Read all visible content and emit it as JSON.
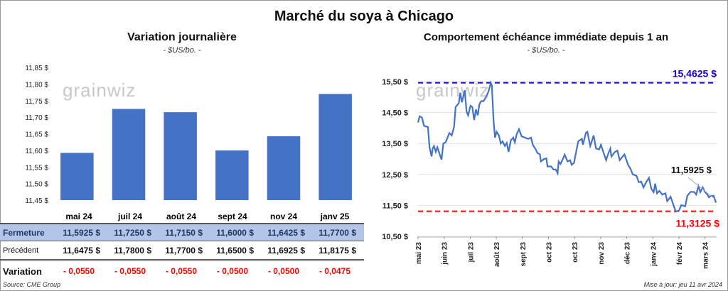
{
  "title": "Marché du soya à Chicago",
  "watermark": "grainwiz",
  "left": {
    "title": "Variation journalière",
    "unit": "- $US/bo. -"
  },
  "right": {
    "title": "Comportement  échéance immédiate depuis 1 an",
    "unit": "- $US/bo. -"
  },
  "table": {
    "row_labels": {
      "close": "Fermeture",
      "prev": "Précédent",
      "change": "Variation"
    },
    "columns": [
      {
        "month": "mai 24",
        "close": "11,5925  $",
        "prev": "11,6475  $",
        "change": "- 0,0550"
      },
      {
        "month": "juil 24",
        "close": "11,7250  $",
        "prev": "11,7800  $",
        "change": "- 0,0550"
      },
      {
        "month": "août 24",
        "close": "11,7150  $",
        "prev": "11,7700  $",
        "change": "- 0,0550"
      },
      {
        "month": "sept 24",
        "close": "11,6000  $",
        "prev": "11,6500  $",
        "change": "- 0,0500"
      },
      {
        "month": "nov 24",
        "close": "11,6425  $",
        "prev": "11,6925  $",
        "change": "- 0,0500"
      },
      {
        "month": "janv 25",
        "close": "11,7700  $",
        "prev": "11,8175  $",
        "change": "- 0,0475"
      }
    ]
  },
  "source": "Source: CME Group",
  "updated": "Mise à jour: jeu 11 avr 2024",
  "colors": {
    "bar": "#4472c4",
    "line": "#4472c4",
    "max": "#1f00c8",
    "min": "#ff0000"
  },
  "chart_data": [
    {
      "type": "bar",
      "title": "Variation journalière",
      "categories": [
        "mai 24",
        "juil 24",
        "août 24",
        "sept 24",
        "nov 24",
        "janv 25"
      ],
      "values": [
        11.5925,
        11.725,
        11.715,
        11.6,
        11.6425,
        11.77
      ],
      "ylim": [
        11.45,
        11.85
      ],
      "yticks": [
        "11,45 $",
        "11,50 $",
        "11,55 $",
        "11,60 $",
        "11,65 $",
        "11,70 $",
        "11,75 $",
        "11,80 $",
        "11,85 $"
      ],
      "grid": false
    },
    {
      "type": "line",
      "title": "Comportement  échéance immédiate depuis 1 an",
      "ylim": [
        10.5,
        15.5
      ],
      "yticks": [
        "10,50 $",
        "11,50 $",
        "12,50 $",
        "13,50 $",
        "14,50 $",
        "15,50 $"
      ],
      "xticks": [
        "mai 23",
        "juin 23",
        "juil 23",
        "août 23",
        "sept 23",
        "oct 23",
        "oct 23",
        "nov 23",
        "déc 23",
        "janv 24",
        "févr 24",
        "mars 24"
      ],
      "x_unit": "months since mai 23",
      "x": [
        0,
        0.06,
        0.15,
        0.23,
        0.38,
        0.44,
        0.52,
        0.56,
        0.61,
        0.68,
        0.74,
        0.83,
        0.9,
        0.97,
        1.06,
        1.2,
        1.29,
        1.38,
        1.44,
        1.56,
        1.62,
        1.68,
        1.79,
        1.86,
        1.92,
        2.01,
        2.08,
        2.15,
        2.22,
        2.29,
        2.35,
        2.42,
        2.51,
        2.6,
        2.7,
        2.79,
        2.83,
        2.89,
        2.95,
        3.01,
        3.1,
        3.17,
        3.24,
        3.33,
        3.4,
        3.47,
        3.56,
        3.65,
        3.71,
        3.78,
        3.87,
        3.97,
        4.1,
        4.22,
        4.33,
        4.4,
        4.51,
        4.58,
        4.67,
        4.71,
        4.83,
        4.92,
        4.96,
        5.1,
        5.19,
        5.28,
        5.35,
        5.39,
        5.46,
        5.55,
        5.62,
        5.73,
        5.83,
        5.89,
        5.98,
        6.03,
        6.14,
        6.28,
        6.32,
        6.43,
        6.49,
        6.6,
        6.73,
        6.82,
        6.94,
        7.01,
        7.1,
        7.21,
        7.28,
        7.37,
        7.41,
        7.55,
        7.64,
        7.73,
        7.91,
        8.05,
        8.14,
        8.23,
        8.37,
        8.46,
        8.55,
        8.64,
        8.73,
        8.85,
        8.94,
        9.03,
        9.09,
        9.16,
        9.25,
        9.36,
        9.48,
        9.55,
        9.68,
        9.79,
        9.88,
        10,
        10.09,
        10.24,
        10.32,
        10.45,
        10.59,
        10.66,
        10.75,
        10.82,
        10.91,
        11,
        11.09,
        11.15,
        11.22,
        11.33,
        11.42
      ],
      "y": [
        14.18,
        14.38,
        14.34,
        14.07,
        14.03,
        13.38,
        13.08,
        13.34,
        13.42,
        13.23,
        13.38,
        13.15,
        12.98,
        13.5,
        13.54,
        13.84,
        13.76,
        14.03,
        14.68,
        14.8,
        15.14,
        14.83,
        15.22,
        14.53,
        14.41,
        14.72,
        14.68,
        14.26,
        14.6,
        14.41,
        14.76,
        14.87,
        14.87,
        14.99,
        15.18,
        15.46,
        15.37,
        14.3,
        13.69,
        13.88,
        13.76,
        13.5,
        13.57,
        13.42,
        13.52,
        13.23,
        13.61,
        13.69,
        13.54,
        13.8,
        13.96,
        13.73,
        13.69,
        13.65,
        13.69,
        13.46,
        13.31,
        13.19,
        13.15,
        12.92,
        13,
        13.02,
        12.76,
        12.76,
        12.66,
        12.66,
        12.54,
        12.92,
        12.84,
        13,
        13.14,
        12.92,
        12.96,
        12.81,
        12.88,
        13.11,
        13.57,
        13.65,
        13.46,
        13.84,
        13.88,
        13.42,
        13.76,
        13.34,
        13.31,
        13.46,
        13.23,
        12.96,
        13.15,
        13.34,
        13.08,
        13.23,
        13.27,
        12.96,
        13.15,
        12.81,
        12.69,
        12.5,
        12.46,
        12.25,
        12.27,
        12.08,
        12.23,
        12.39,
        12.04,
        11.93,
        12.2,
        11.89,
        11.97,
        11.85,
        11.89,
        11.64,
        11.78,
        11.51,
        11.3,
        11.33,
        11.51,
        11.47,
        11.81,
        11.94,
        11.93,
        11.85,
        12.12,
        11.93,
        12.08,
        11.93,
        11.85,
        11.76,
        11.81,
        11.81,
        11.59
      ],
      "max": {
        "value": 15.4625,
        "label": "15,4625 $"
      },
      "min": {
        "value": 11.3125,
        "label": "11,3125 $"
      },
      "last": {
        "value": 11.5925,
        "label": "11,5925 $"
      }
    }
  ]
}
